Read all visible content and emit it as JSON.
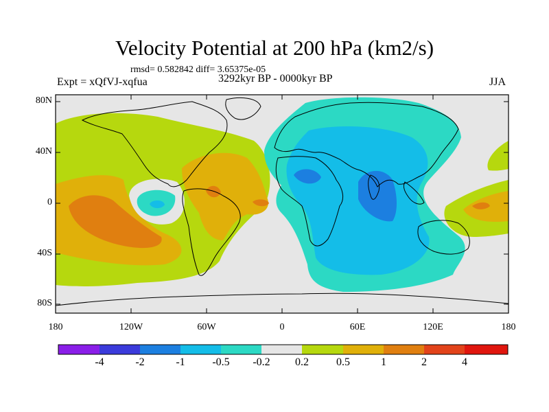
{
  "title": "Velocity Potential at 200 hPa (km2/s)",
  "stats": "rmsd= 0.582842 diff= 3.65375e-05",
  "experiment": "Expt = xQfVJ-xqfua",
  "period": "3292kyr BP - 0000kyr BP",
  "season": "JJA",
  "y_axis_labels": [
    "80N",
    "40N",
    "0",
    "40S",
    "80S"
  ],
  "x_axis_labels": [
    "180",
    "120W",
    "60W",
    "0",
    "60E",
    "120E",
    "180"
  ],
  "colorbar": {
    "labels": [
      "-4",
      "-2",
      "-1",
      "-0.5",
      "-0.2",
      "0.2",
      "0.5",
      "1",
      "2",
      "4"
    ],
    "colors": [
      "#8a1ee8",
      "#3b3bdb",
      "#1c7fe0",
      "#14bde8",
      "#2cd9c4",
      "#e6e6e6",
      "#b6d80e",
      "#e0b00a",
      "#e07f10",
      "#e2431a",
      "#e0160e"
    ]
  }
}
